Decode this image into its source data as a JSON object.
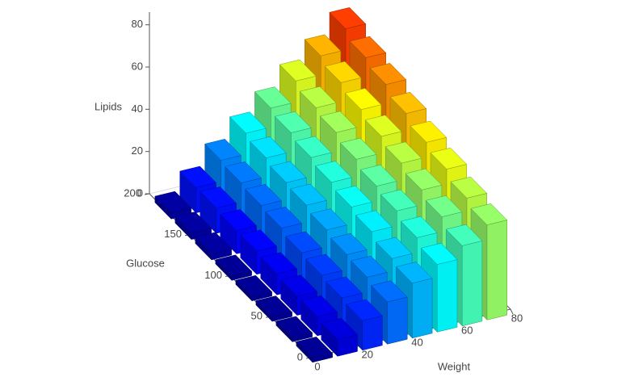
{
  "chart_data": {
    "type": "bar3d",
    "x_label": "Weight",
    "y_label": "Glucose",
    "z_label": "Lipids",
    "x": [
      3,
      13,
      23,
      33,
      43,
      53,
      63,
      73
    ],
    "y": [
      5,
      30,
      55,
      80,
      105,
      130,
      155,
      180
    ],
    "values": [
      [
        2,
        8,
        14,
        20,
        26,
        32,
        38,
        45
      ],
      [
        2,
        9,
        15,
        22,
        28,
        35,
        42,
        48
      ],
      [
        2,
        9,
        16,
        23,
        31,
        38,
        45,
        52
      ],
      [
        2,
        10,
        17,
        25,
        33,
        40,
        48,
        55
      ],
      [
        2,
        11,
        19,
        27,
        35,
        43,
        51,
        59
      ],
      [
        3,
        11,
        20,
        28,
        37,
        46,
        54,
        63
      ],
      [
        3,
        12,
        21,
        30,
        39,
        48,
        57,
        66
      ],
      [
        3,
        12,
        22,
        32,
        41,
        51,
        60,
        70
      ]
    ],
    "xlim": [
      0,
      80
    ],
    "xticks": [
      0,
      20,
      40,
      60,
      80
    ],
    "ylim": [
      0,
      200
    ],
    "yticks": [
      0,
      50,
      100,
      150,
      200
    ],
    "zlim": [
      0,
      86
    ],
    "zticks": [
      0,
      20,
      40,
      60,
      80
    ],
    "grid": true
  }
}
